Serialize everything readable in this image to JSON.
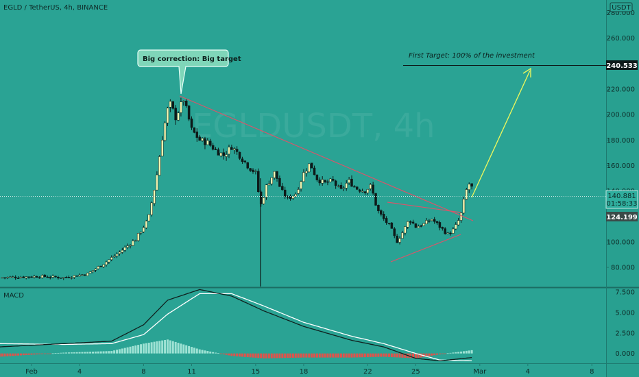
{
  "header": {
    "symbol_title": "EGLD / TetherUS, 4h, BINANCE",
    "currency_badge": "USDT",
    "watermark": "EGLDUSDT, 4h"
  },
  "indicator": {
    "name": "MACD"
  },
  "annotations": {
    "callout": "Big correction: Big target",
    "target_note": "First Target: 100% of the investment"
  },
  "price_badges": {
    "target": "240.533",
    "current": "140.881",
    "countdown": "01:58:33",
    "support": "124.199"
  },
  "colors": {
    "background": "#2aa394",
    "up_candle": "#f3f7b2",
    "down_candle": "#0d1a19",
    "trendline": "#d9556a",
    "arrow": "#e8f55e",
    "macd_line": "#10211f",
    "signal_line": "#ffffff",
    "hist_pos": "#9ee2d4",
    "hist_neg": "#e0534b"
  },
  "chart_data": {
    "type": "candlestick",
    "price_axis": {
      "ylim": [
        65,
        290
      ],
      "ticks": [
        80,
        100,
        120,
        140,
        160,
        180,
        200,
        220,
        240,
        260,
        280
      ],
      "tick_labels": [
        "80.000",
        "100.000",
        "120.000",
        "140.000",
        "160.000",
        "180.000",
        "200.000",
        "220.000",
        "240.000",
        "260.000",
        "280.000"
      ]
    },
    "macd_axis": {
      "ylim": [
        -1.2,
        8.0
      ],
      "ticks": [
        0,
        2.5,
        5,
        7.5
      ],
      "tick_labels": [
        "0.000",
        "2.500",
        "5.000",
        "7.500"
      ]
    },
    "x_axis": {
      "range_days": [
        0,
        38
      ],
      "ticks": [
        {
          "day": 0,
          "label": "Feb"
        },
        {
          "day": 3,
          "label": "4"
        },
        {
          "day": 7,
          "label": "8"
        },
        {
          "day": 10,
          "label": "11"
        },
        {
          "day": 14,
          "label": "15"
        },
        {
          "day": 17,
          "label": "18"
        },
        {
          "day": 21,
          "label": "22"
        },
        {
          "day": 24,
          "label": "25"
        },
        {
          "day": 28,
          "label": "Mar"
        },
        {
          "day": 31,
          "label": "4"
        },
        {
          "day": 35,
          "label": "8"
        }
      ]
    },
    "series": [
      {
        "name": "",
        "kind": "close_path",
        "points": [
          [
            -2,
            72
          ],
          [
            0.5,
            73
          ],
          [
            2,
            72
          ],
          [
            3.5,
            75
          ],
          [
            4.5,
            83
          ],
          [
            5.5,
            92
          ],
          [
            6.5,
            102
          ],
          [
            7.3,
            118
          ],
          [
            7.8,
            150
          ],
          [
            8.2,
            185
          ],
          [
            8.6,
            210
          ],
          [
            9.0,
            198
          ],
          [
            9.5,
            212
          ],
          [
            10.0,
            188
          ],
          [
            10.5,
            180
          ],
          [
            11.0,
            178
          ],
          [
            11.5,
            172
          ],
          [
            12.0,
            168
          ],
          [
            12.5,
            175
          ],
          [
            13.0,
            168
          ],
          [
            13.5,
            160
          ],
          [
            14.0,
            154
          ],
          [
            14.3,
            128
          ],
          [
            14.7,
            145
          ],
          [
            15.2,
            155
          ],
          [
            15.6,
            140
          ],
          [
            16.0,
            134
          ],
          [
            16.5,
            138
          ],
          [
            17.0,
            154
          ],
          [
            17.4,
            162
          ],
          [
            17.8,
            150
          ],
          [
            18.3,
            146
          ],
          [
            18.8,
            148
          ],
          [
            19.3,
            140
          ],
          [
            19.8,
            148
          ],
          [
            20.3,
            142
          ],
          [
            20.8,
            140
          ],
          [
            21.2,
            144
          ],
          [
            21.6,
            125
          ],
          [
            22.0,
            118
          ],
          [
            22.4,
            112
          ],
          [
            22.8,
            100
          ],
          [
            23.2,
            108
          ],
          [
            23.6,
            118
          ],
          [
            24.0,
            112
          ],
          [
            24.5,
            114
          ],
          [
            25.0,
            118
          ],
          [
            25.5,
            112
          ],
          [
            26.0,
            106
          ],
          [
            26.4,
            110
          ],
          [
            26.8,
            120
          ],
          [
            27.1,
            138
          ],
          [
            27.3,
            146
          ],
          [
            27.6,
            141
          ]
        ]
      },
      {
        "name": "",
        "kind": "macd",
        "points": [
          [
            -2,
            0.8
          ],
          [
            2,
            1.2
          ],
          [
            5,
            1.5
          ],
          [
            7,
            3.5
          ],
          [
            8.5,
            6.5
          ],
          [
            10.5,
            7.8
          ],
          [
            12.5,
            7.0
          ],
          [
            14.5,
            5.2
          ],
          [
            17,
            3.3
          ],
          [
            20,
            1.6
          ],
          [
            22,
            0.8
          ],
          [
            24,
            -0.6
          ],
          [
            25.5,
            -0.9
          ],
          [
            27.5,
            -0.5
          ]
        ]
      },
      {
        "name": "",
        "kind": "signal",
        "points": [
          [
            -2,
            1.2
          ],
          [
            2,
            1.1
          ],
          [
            5,
            1.2
          ],
          [
            7,
            2.3
          ],
          [
            8.5,
            4.8
          ],
          [
            10.5,
            7.3
          ],
          [
            12.5,
            7.3
          ],
          [
            14.5,
            5.8
          ],
          [
            17,
            3.8
          ],
          [
            20,
            2.1
          ],
          [
            22,
            1.2
          ],
          [
            24,
            0.0
          ],
          [
            25.5,
            -0.8
          ],
          [
            27.5,
            -0.9
          ]
        ]
      }
    ],
    "title": "",
    "xlabel": "",
    "ylabel": "",
    "grid": false,
    "legend": "none"
  }
}
